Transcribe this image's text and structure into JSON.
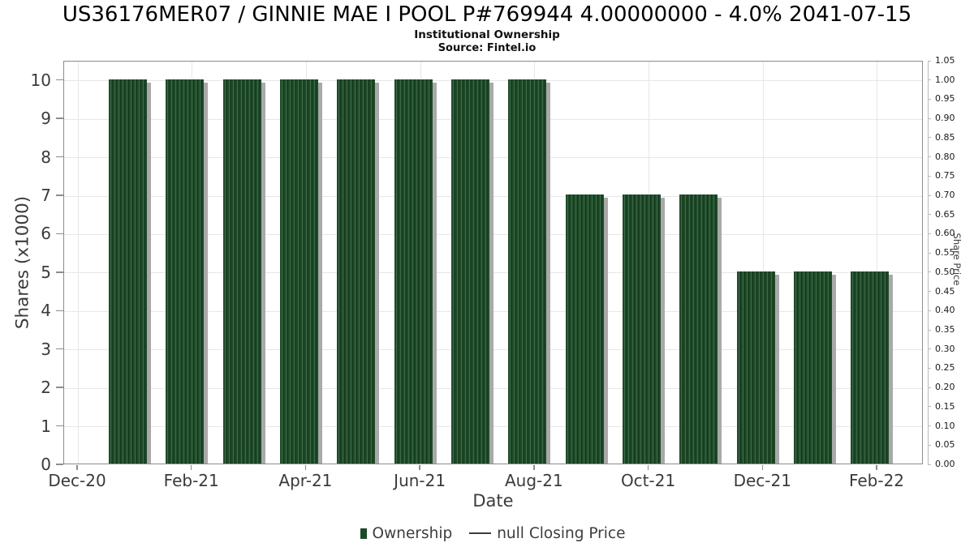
{
  "header": {
    "title": "US36176MER07 / GINNIE MAE I POOL P#769944 4.00000000 - 4.0% 2041-07-15",
    "subtitle": "Institutional Ownership",
    "source": "Source: Fintel.io"
  },
  "chart_data": {
    "type": "bar",
    "title": "US36176MER07 / GINNIE MAE I POOL P#769944 4.00000000 - 4.0% 2041-07-15",
    "subtitle": "Institutional Ownership",
    "source": "Source: Fintel.io",
    "xlabel": "Date",
    "ylabel_left": "Shares (x1000)",
    "ylabel_right": "Share Price",
    "categories": [
      "Jan-21",
      "Feb-21",
      "Mar-21",
      "Apr-21",
      "May-21",
      "Jun-21",
      "Jul-21",
      "Aug-21",
      "Sep-21",
      "Oct-21",
      "Nov-21",
      "Dec-21",
      "Jan-22",
      "Feb-22"
    ],
    "series": [
      {
        "name": "Ownership",
        "units": "shares x1000",
        "values": [
          10,
          10,
          10,
          10,
          10,
          10,
          10,
          10,
          7,
          7,
          7,
          5,
          5,
          5
        ]
      }
    ],
    "price_series": {
      "name": "null Closing Price",
      "values": null,
      "note": "no line drawn (null)"
    },
    "x_axis": {
      "tick_labels": [
        "Dec-20",
        "Feb-21",
        "Apr-21",
        "Jun-21",
        "Aug-21",
        "Oct-21",
        "Dec-21",
        "Feb-22"
      ],
      "first_month": "Dec-20",
      "tick_step_months": 2
    },
    "y_axis_left": {
      "tick_labels": [
        "0",
        "1",
        "2",
        "3",
        "4",
        "5",
        "6",
        "7",
        "8",
        "9",
        "10"
      ],
      "range": [
        0,
        10.5
      ]
    },
    "y_axis_right": {
      "tick_labels": [
        "0.00",
        "0.05",
        "0.10",
        "0.15",
        "0.20",
        "0.25",
        "0.30",
        "0.35",
        "0.40",
        "0.45",
        "0.50",
        "0.55",
        "0.60",
        "0.65",
        "0.70",
        "0.75",
        "0.80",
        "0.85",
        "0.90",
        "0.95",
        "1.00",
        "1.05"
      ],
      "range": [
        0,
        1.05
      ]
    },
    "grid": true,
    "legend": {
      "position": "bottom-center",
      "items": [
        {
          "label": "Ownership",
          "marker": "bar-swatch"
        },
        {
          "label": "null Closing Price",
          "marker": "line-dash"
        }
      ]
    }
  },
  "colors": {
    "bar_fill": "#1f4a29",
    "bar_stripe_light": "#3a6a46",
    "bar_stripe_dark": "#15381c",
    "bar_shadow": "#a9a9a9",
    "grid_line": "#e7e7e7",
    "plot_border": "#8c8c8c",
    "right_spine": "#b9b9b9",
    "tick_text": "#3b3b3b",
    "title_text": "#000000"
  }
}
